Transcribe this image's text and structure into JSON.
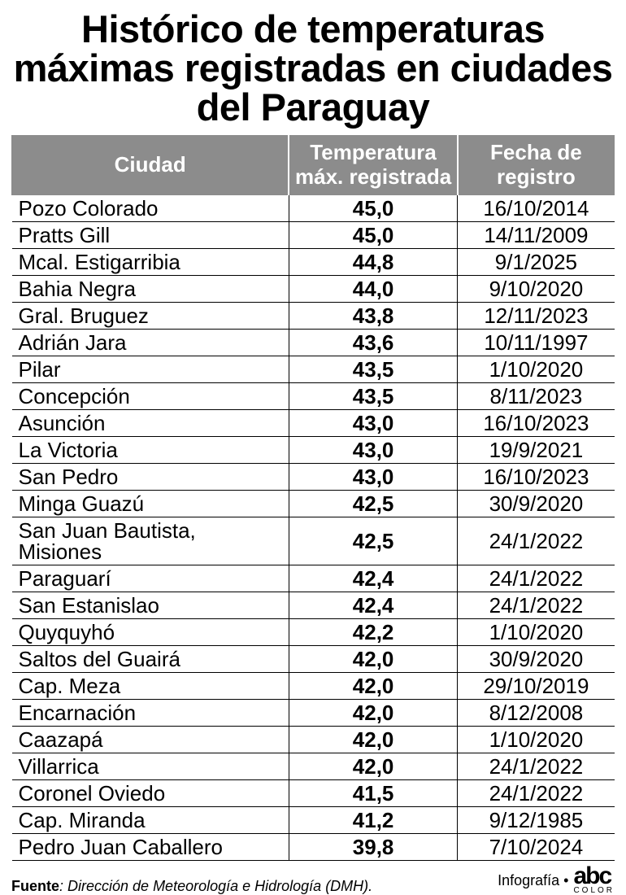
{
  "title": "Histórico de temperaturas máximas registradas en ciudades del Paraguay",
  "table": {
    "type": "table",
    "header_bg": "#8c8c8c",
    "header_fg": "#ffffff",
    "border_color": "#000000",
    "header_fontsize": 26,
    "cell_fontsize": 26,
    "columns": [
      {
        "label": "Ciudad",
        "align": "left",
        "width_pct": 46
      },
      {
        "label": "Temperatura máx. registrada",
        "align": "center",
        "width_pct": 28,
        "bold_cells": true
      },
      {
        "label": "Fecha de registro",
        "align": "center",
        "width_pct": 26
      }
    ],
    "rows": [
      {
        "city": "Pozo Colorado",
        "temp": "45,0",
        "date": "16/10/2014"
      },
      {
        "city": "Pratts Gill",
        "temp": "45,0",
        "date": "14/11/2009"
      },
      {
        "city": "Mcal. Estigarribia",
        "temp": "44,8",
        "date": "9/1/2025"
      },
      {
        "city": "Bahia Negra",
        "temp": "44,0",
        "date": "9/10/2020"
      },
      {
        "city": "Gral. Bruguez",
        "temp": "43,8",
        "date": "12/11/2023"
      },
      {
        "city": "Adrián Jara",
        "temp": "43,6",
        "date": "10/11/1997"
      },
      {
        "city": "Pilar",
        "temp": "43,5",
        "date": "1/10/2020"
      },
      {
        "city": "Concepción",
        "temp": "43,5",
        "date": "8/11/2023"
      },
      {
        "city": "Asunción",
        "temp": "43,0",
        "date": "16/10/2023"
      },
      {
        "city": "La Victoria",
        "temp": "43,0",
        "date": "19/9/2021"
      },
      {
        "city": "San Pedro",
        "temp": "43,0",
        "date": "16/10/2023"
      },
      {
        "city": "Minga Guazú",
        "temp": "42,5",
        "date": "30/9/2020"
      },
      {
        "city": "San Juan Bautista, Misiones",
        "temp": "42,5",
        "date": "24/1/2022"
      },
      {
        "city": "Paraguarí",
        "temp": "42,4",
        "date": "24/1/2022"
      },
      {
        "city": "San Estanislao",
        "temp": "42,4",
        "date": "24/1/2022"
      },
      {
        "city": "Quyquyhó",
        "temp": "42,2",
        "date": "1/10/2020"
      },
      {
        "city": "Saltos del Guairá",
        "temp": "42,0",
        "date": "30/9/2020"
      },
      {
        "city": "Cap. Meza",
        "temp": "42,0",
        "date": "29/10/2019"
      },
      {
        "city": "Encarnación",
        "temp": "42,0",
        "date": "8/12/2008"
      },
      {
        "city": "Caazapá",
        "temp": "42,0",
        "date": "1/10/2020"
      },
      {
        "city": "Villarrica",
        "temp": "42,0",
        "date": "24/1/2022"
      },
      {
        "city": "Coronel Oviedo",
        "temp": "41,5",
        "date": "24/1/2022"
      },
      {
        "city": "Cap. Miranda",
        "temp": "41,2",
        "date": "9/12/1985"
      },
      {
        "city": "Pedro Juan Caballero",
        "temp": "39,8",
        "date": "7/10/2024"
      }
    ]
  },
  "source": {
    "label": "Fuente",
    "text": ": Dirección de Meteorología e Hidrología (DMH)."
  },
  "credit": {
    "label": "Infografía •",
    "logo_main": "abc",
    "logo_sub": "COLOR"
  },
  "style": {
    "title_fontsize": 47,
    "title_weight": 900,
    "background": "#ffffff",
    "text_color": "#000000"
  }
}
